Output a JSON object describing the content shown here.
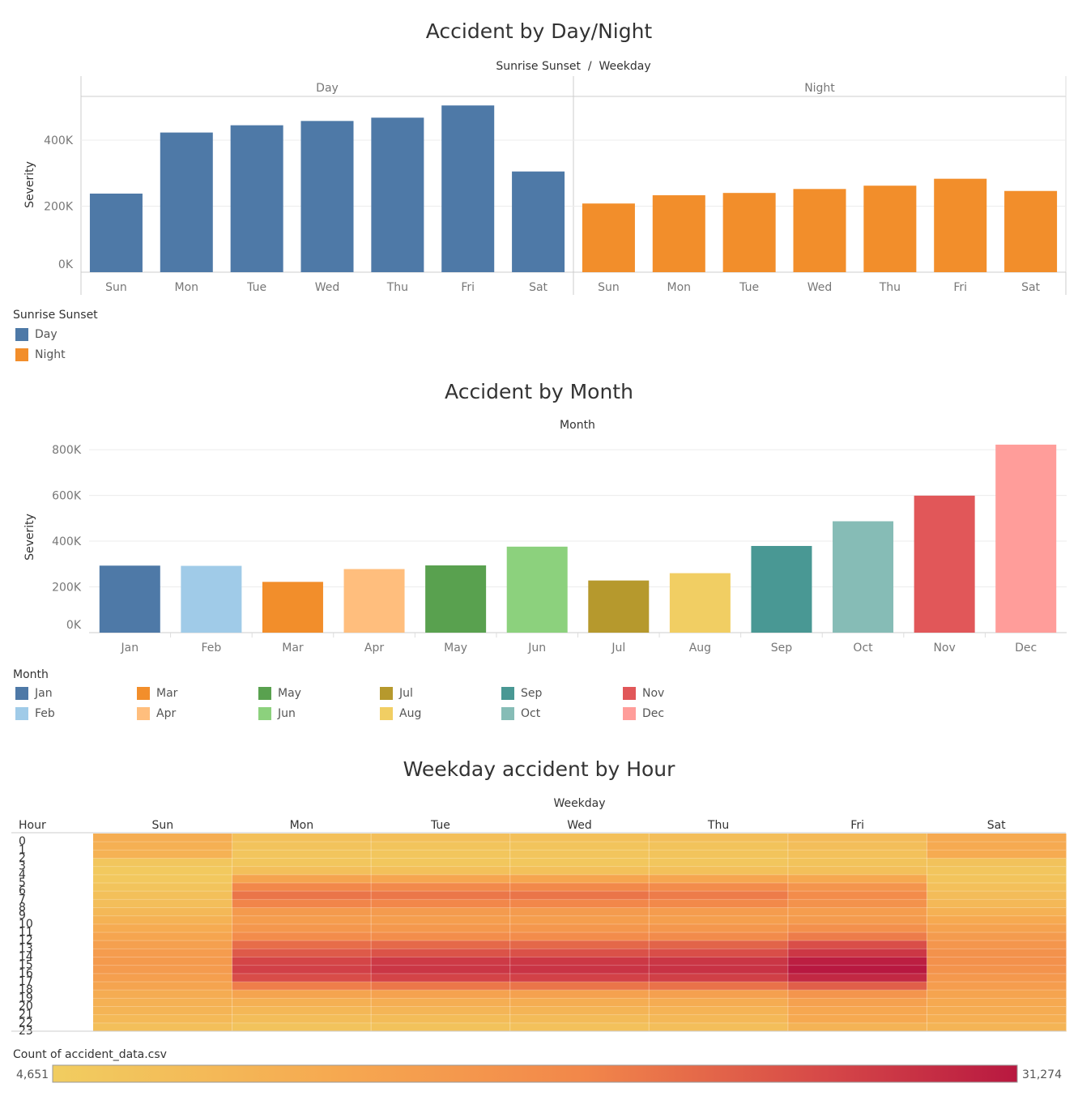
{
  "chart_data": [
    {
      "type": "bar",
      "title": "Accident by Day/Night",
      "column_header": "Sunrise Sunset  /  Weekday",
      "ylabel": "Severity",
      "ylim": [
        0,
        530000
      ],
      "yticks": [
        0,
        200000,
        400000
      ],
      "ytick_labels": [
        "0K",
        "200K",
        "400K"
      ],
      "panels": [
        "Day",
        "Night"
      ],
      "categories": [
        "Sun",
        "Mon",
        "Tue",
        "Wed",
        "Thu",
        "Fri",
        "Sat"
      ],
      "series": [
        {
          "name": "Day",
          "color": "#4e79a7",
          "values": [
            238000,
            423000,
            445000,
            458000,
            468000,
            505000,
            305000
          ]
        },
        {
          "name": "Night",
          "color": "#f28e2b",
          "values": [
            208000,
            233000,
            240000,
            252000,
            262000,
            283000,
            246000
          ]
        }
      ],
      "legend": {
        "title": "Sunrise Sunset",
        "position": "bottom-left"
      },
      "grid": true
    },
    {
      "type": "bar",
      "title": "Accident by Month",
      "column_header": "Month",
      "ylabel": "Severity",
      "ylim": [
        0,
        850000
      ],
      "yticks": [
        0,
        200000,
        400000,
        600000,
        800000
      ],
      "ytick_labels": [
        "0K",
        "200K",
        "400K",
        "600K",
        "800K"
      ],
      "categories": [
        "Jan",
        "Feb",
        "Mar",
        "Apr",
        "May",
        "Jun",
        "Jul",
        "Aug",
        "Sep",
        "Oct",
        "Nov",
        "Dec"
      ],
      "values": [
        293000,
        292000,
        222000,
        278000,
        294000,
        376000,
        228000,
        260000,
        379000,
        487000,
        599000,
        822000
      ],
      "colors": [
        "#4e79a7",
        "#a0cbe8",
        "#f28e2b",
        "#ffbe7d",
        "#59a14f",
        "#8cd17d",
        "#b6992d",
        "#f1ce63",
        "#499894",
        "#86bcb6",
        "#e15759",
        "#ff9d9a"
      ],
      "legend": {
        "title": "Month",
        "position": "bottom-left"
      },
      "grid": true
    },
    {
      "type": "heatmap",
      "title": "Weekday accident by Hour",
      "column_header": "Weekday",
      "row_header": "Hour",
      "columns": [
        "Sun",
        "Mon",
        "Tue",
        "Wed",
        "Thu",
        "Fri",
        "Sat"
      ],
      "rows": [
        "0",
        "1",
        "2",
        "3",
        "4",
        "5",
        "6",
        "7",
        "8",
        "9",
        "10",
        "11",
        "12",
        "13",
        "14",
        "15",
        "16",
        "17",
        "18",
        "19",
        "20",
        "21",
        "22",
        "23"
      ],
      "values": [
        [
          11500,
          7500,
          7600,
          7500,
          7800,
          8800,
          12500
        ],
        [
          11000,
          6800,
          6600,
          6700,
          6900,
          7800,
          12200
        ],
        [
          10500,
          6300,
          6200,
          6300,
          6500,
          7300,
          12000
        ],
        [
          6200,
          6100,
          5900,
          6000,
          6200,
          6900,
          7000
        ],
        [
          5600,
          7600,
          7400,
          7500,
          7400,
          7700,
          6300
        ],
        [
          5800,
          13500,
          13000,
          13200,
          13000,
          12600,
          6500
        ],
        [
          6500,
          19000,
          18700,
          18800,
          18200,
          16500,
          7500
        ],
        [
          7400,
          21200,
          21000,
          21200,
          20500,
          18200,
          8300
        ],
        [
          7800,
          19500,
          19200,
          19300,
          18800,
          17000,
          9100
        ],
        [
          9200,
          15500,
          15200,
          15300,
          15000,
          14800,
          10800
        ],
        [
          10500,
          14800,
          14600,
          14700,
          14500,
          15200,
          12500
        ],
        [
          12000,
          16000,
          15800,
          16000,
          16000,
          17500,
          13800
        ],
        [
          13200,
          18200,
          18000,
          18300,
          18500,
          20500,
          15200
        ],
        [
          14200,
          22000,
          22500,
          22600,
          23000,
          25300,
          16200
        ],
        [
          15000,
          24000,
          24800,
          25000,
          25300,
          27800,
          17000
        ],
        [
          15500,
          26300,
          27500,
          27700,
          28000,
          30600,
          17300
        ],
        [
          15200,
          26800,
          28000,
          28200,
          28400,
          31274,
          16800
        ],
        [
          14500,
          25500,
          26500,
          26700,
          27000,
          29500,
          15800
        ],
        [
          13500,
          20200,
          21000,
          21200,
          21500,
          23500,
          14800
        ],
        [
          11800,
          13500,
          13800,
          14000,
          14300,
          16500,
          13500
        ],
        [
          10800,
          11000,
          11300,
          11500,
          11800,
          14000,
          12500
        ],
        [
          10000,
          9500,
          9800,
          10000,
          10300,
          12800,
          11800
        ],
        [
          9000,
          8200,
          8400,
          8600,
          9200,
          12500,
          11200
        ],
        [
          7600,
          6800,
          7000,
          7200,
          7800,
          10200,
          10000
        ]
      ],
      "color_min": 4651,
      "color_max": 31274,
      "legend": {
        "title": "Count of accident_data.csv",
        "min_label": "4,651",
        "max_label": "31,274",
        "position": "bottom"
      }
    }
  ]
}
